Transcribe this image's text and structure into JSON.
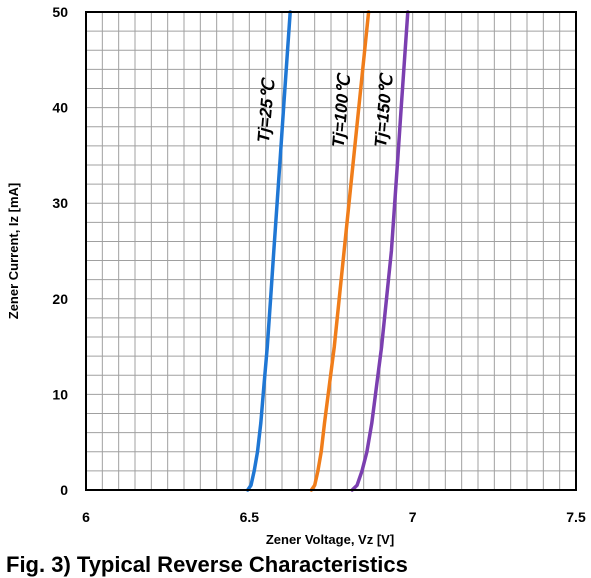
{
  "chart_data": {
    "type": "line",
    "xlabel": "Zener Voltage, Vz [V]",
    "ylabel": "Zener Current, Iz [mA]",
    "xlim": [
      6,
      7.5
    ],
    "ylim": [
      0,
      50
    ],
    "x_ticks": [
      "6",
      "6.5",
      "7",
      "7.5"
    ],
    "y_ticks": [
      "0",
      "10",
      "20",
      "30",
      "40",
      "50"
    ],
    "grid": true,
    "series": [
      {
        "name": "Tj=25℃",
        "color": "#1f77d4",
        "points": [
          [
            6.495,
            0
          ],
          [
            6.505,
            0.5
          ],
          [
            6.515,
            2
          ],
          [
            6.525,
            4
          ],
          [
            6.535,
            7
          ],
          [
            6.545,
            11
          ],
          [
            6.555,
            15
          ],
          [
            6.565,
            20
          ],
          [
            6.575,
            25
          ],
          [
            6.585,
            30
          ],
          [
            6.595,
            35
          ],
          [
            6.605,
            40
          ],
          [
            6.615,
            45
          ],
          [
            6.625,
            50
          ]
        ]
      },
      {
        "name": "Tj=100℃",
        "color": "#f07d1a",
        "points": [
          [
            6.69,
            0
          ],
          [
            6.7,
            0.5
          ],
          [
            6.71,
            2
          ],
          [
            6.72,
            4
          ],
          [
            6.73,
            7
          ],
          [
            6.745,
            11
          ],
          [
            6.76,
            15
          ],
          [
            6.775,
            20
          ],
          [
            6.79,
            25
          ],
          [
            6.805,
            30
          ],
          [
            6.82,
            35
          ],
          [
            6.835,
            40
          ],
          [
            6.85,
            45
          ],
          [
            6.865,
            50
          ]
        ]
      },
      {
        "name": "Tj=150℃",
        "color": "#7b3fb0",
        "points": [
          [
            6.815,
            0
          ],
          [
            6.83,
            0.5
          ],
          [
            6.845,
            2
          ],
          [
            6.86,
            4
          ],
          [
            6.875,
            7
          ],
          [
            6.89,
            11
          ],
          [
            6.905,
            15
          ],
          [
            6.92,
            20
          ],
          [
            6.935,
            25
          ],
          [
            6.945,
            30
          ],
          [
            6.955,
            35
          ],
          [
            6.965,
            40
          ],
          [
            6.975,
            45
          ],
          [
            6.985,
            50
          ]
        ]
      }
    ]
  },
  "caption": "Fig. 3) Typical Reverse Characteristics"
}
